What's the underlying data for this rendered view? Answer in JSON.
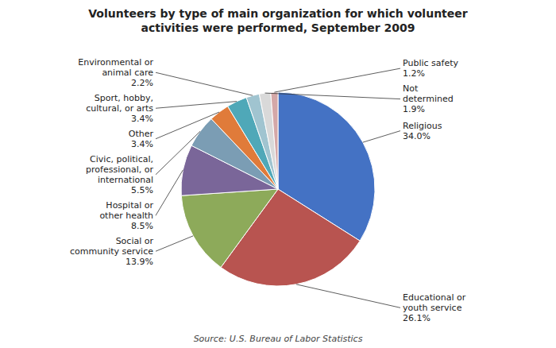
{
  "chart_data": {
    "type": "pie",
    "title": "Volunteers by type of main organization for which volunteer\nactivities were performed, September 2009",
    "annotations": [
      "Source: U.S. Bureau of Labor Statistics"
    ],
    "categories": [
      "Religious",
      "Educational or\nyouth service",
      "Social or\ncommunity service",
      "Hospital or\nother health",
      "Civic, political,\nprofessional, or\ninternational",
      "Other",
      "Sport, hobby,\ncultural, or arts",
      "Environmental or\nanimal care",
      "Not\ndetermined",
      "Public safety"
    ],
    "values": [
      34.0,
      26.1,
      13.9,
      8.5,
      5.5,
      3.4,
      3.4,
      2.2,
      1.9,
      1.2
    ],
    "value_labels": [
      "34.0%",
      "26.1%",
      "13.9%",
      "8.5%",
      "5.5%",
      "3.4%",
      "3.4%",
      "2.2%",
      "1.9%",
      "1.2%"
    ],
    "colors": [
      "#4472C4",
      "#B85450",
      "#8DAA5A",
      "#7A6699",
      "#7B9DB4",
      "#E07B3A",
      "#4FA8B8",
      "#A0C4D0",
      "#D9D9D9",
      "#D4A8A8"
    ],
    "data_labels": true
  }
}
